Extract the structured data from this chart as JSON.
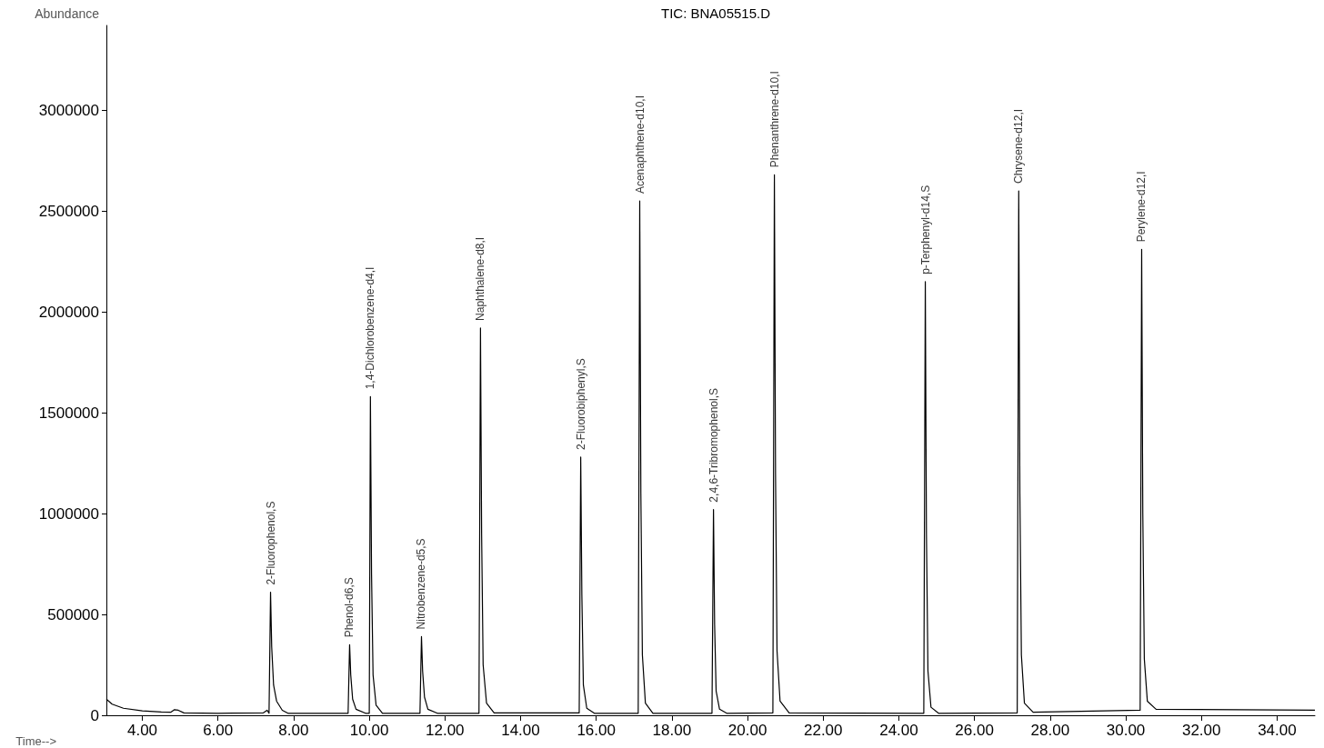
{
  "chart_data": {
    "type": "line",
    "title": "TIC: BNA05515.D",
    "xlabel": "Time-->",
    "ylabel": "Abundance",
    "x": [
      3.05,
      3.2,
      3.5,
      4.0,
      4.5,
      4.75,
      4.85,
      4.95,
      5.1,
      6.0,
      7.2,
      7.3,
      7.35,
      7.39,
      7.42,
      7.47,
      7.55,
      7.7,
      7.85,
      9.44,
      9.48,
      9.51,
      9.56,
      9.65,
      9.9,
      10.0,
      10.03,
      10.06,
      10.1,
      10.18,
      10.35,
      11.34,
      11.38,
      11.41,
      11.46,
      11.55,
      11.8,
      12.9,
      12.94,
      12.97,
      13.01,
      13.1,
      13.3,
      15.55,
      15.59,
      15.62,
      15.66,
      15.75,
      15.95,
      17.11,
      17.15,
      17.18,
      17.22,
      17.3,
      17.5,
      19.06,
      19.1,
      19.13,
      19.17,
      19.26,
      19.45,
      20.67,
      20.71,
      20.74,
      20.78,
      20.86,
      21.1,
      24.66,
      24.7,
      24.73,
      24.77,
      24.85,
      25.05,
      27.13,
      27.17,
      27.2,
      27.24,
      27.32,
      27.55,
      30.38,
      30.42,
      30.45,
      30.49,
      30.57,
      30.8,
      33.0,
      35.0
    ],
    "values": [
      80000,
      55000,
      35000,
      22000,
      16000,
      15000,
      28000,
      25000,
      12000,
      10000,
      12000,
      25000,
      10000,
      610000,
      340000,
      150000,
      70000,
      25000,
      10000,
      10000,
      350000,
      200000,
      80000,
      30000,
      10000,
      10000,
      1580000,
      700000,
      200000,
      50000,
      10000,
      10000,
      390000,
      220000,
      90000,
      30000,
      10000,
      10000,
      1920000,
      900000,
      250000,
      60000,
      12000,
      12000,
      1280000,
      600000,
      150000,
      35000,
      10000,
      10000,
      2550000,
      1100000,
      300000,
      60000,
      10000,
      10000,
      1020000,
      450000,
      120000,
      30000,
      10000,
      12000,
      2680000,
      1200000,
      320000,
      70000,
      12000,
      10000,
      2150000,
      900000,
      220000,
      40000,
      10000,
      12000,
      2600000,
      1100000,
      300000,
      60000,
      15000,
      25000,
      2310000,
      1000000,
      280000,
      70000,
      30000,
      28000,
      25000
    ],
    "color": "#000000",
    "marker": "none",
    "grid": false,
    "xlim": [
      3.05,
      35.0
    ],
    "xticks": [
      {
        "value": 4,
        "label": "4.00"
      },
      {
        "value": 6,
        "label": "6.00"
      },
      {
        "value": 8,
        "label": "8.00"
      },
      {
        "value": 10,
        "label": "10.00"
      },
      {
        "value": 12,
        "label": "12.00"
      },
      {
        "value": 14,
        "label": "14.00"
      },
      {
        "value": 16,
        "label": "16.00"
      },
      {
        "value": 18,
        "label": "18.00"
      },
      {
        "value": 20,
        "label": "20.00"
      },
      {
        "value": 22,
        "label": "22.00"
      },
      {
        "value": 24,
        "label": "24.00"
      },
      {
        "value": 26,
        "label": "26.00"
      },
      {
        "value": 28,
        "label": "28.00"
      },
      {
        "value": 30,
        "label": "30.00"
      },
      {
        "value": 32,
        "label": "32.00"
      },
      {
        "value": 34,
        "label": "34.00"
      }
    ],
    "ylim": [
      0,
      3420000
    ],
    "yticks": [
      0,
      500000,
      1000000,
      1500000,
      2000000,
      2500000,
      3000000
    ],
    "annotations": [
      {
        "text": "2-Fluorophenol,S",
        "x": 7.39,
        "y": 610000
      },
      {
        "text": "Phenol-d6,S",
        "x": 9.48,
        "y": 350000
      },
      {
        "text": "1,4-Dichlorobenzene-d4,I",
        "x": 10.03,
        "y": 1580000
      },
      {
        "text": "Nitrobenzene-d5,S",
        "x": 11.38,
        "y": 390000
      },
      {
        "text": "Naphthalene-d8,I",
        "x": 12.94,
        "y": 1920000
      },
      {
        "text": "2-Fluorobiphenyl,S",
        "x": 15.59,
        "y": 1280000
      },
      {
        "text": "Acenaphthene-d10,I",
        "x": 17.15,
        "y": 2550000
      },
      {
        "text": "2,4,6-Tribromophenol,S",
        "x": 19.1,
        "y": 1020000
      },
      {
        "text": "Phenanthrene-d10,I",
        "x": 20.71,
        "y": 2680000
      },
      {
        "text": "p-Terphenyl-d14,S",
        "x": 24.7,
        "y": 2150000
      },
      {
        "text": "Chrysene-d12,I",
        "x": 27.17,
        "y": 2600000
      },
      {
        "text": "Perylene-d12,I",
        "x": 30.42,
        "y": 2310000
      }
    ]
  }
}
